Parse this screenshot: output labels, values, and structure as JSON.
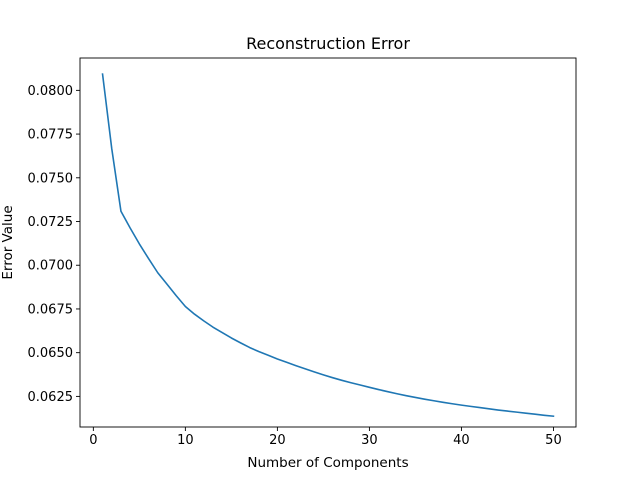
{
  "chart_data": {
    "type": "line",
    "title": "Reconstruction Error",
    "xlabel": "Number of Components",
    "ylabel": "Error Value",
    "xlim": [
      -1.45,
      52.45
    ],
    "ylim": [
      0.06075,
      0.08185
    ],
    "xticks": [
      0,
      10,
      20,
      30,
      40,
      50
    ],
    "yticks": [
      0.0625,
      0.065,
      0.0675,
      0.07,
      0.0725,
      0.075,
      0.0775,
      0.08
    ],
    "grid": false,
    "colors": {
      "series": "#1f77b4"
    },
    "series": [
      {
        "x": [
          1,
          2,
          3,
          4,
          5,
          6,
          7,
          8,
          9,
          10,
          11,
          12,
          13,
          14,
          15,
          16,
          17,
          18,
          19,
          20,
          21,
          22,
          23,
          24,
          25,
          26,
          27,
          28,
          29,
          30,
          31,
          32,
          33,
          34,
          35,
          36,
          37,
          38,
          39,
          40,
          41,
          42,
          43,
          44,
          45,
          46,
          47,
          48,
          49,
          50
        ],
        "values": [
          0.08093,
          0.07667,
          0.07309,
          0.07213,
          0.07122,
          0.07038,
          0.06957,
          0.06892,
          0.06826,
          0.06764,
          0.0672,
          0.06682,
          0.06646,
          0.06615,
          0.06584,
          0.06556,
          0.06529,
          0.06506,
          0.06485,
          0.06464,
          0.06445,
          0.06426,
          0.06408,
          0.0639,
          0.06373,
          0.06357,
          0.06342,
          0.06328,
          0.06315,
          0.06302,
          0.06289,
          0.06277,
          0.06265,
          0.06254,
          0.06244,
          0.06234,
          0.06225,
          0.06216,
          0.06208,
          0.062,
          0.06193,
          0.06186,
          0.06179,
          0.06172,
          0.06166,
          0.0616,
          0.06154,
          0.06148,
          0.06142,
          0.06137
        ]
      }
    ]
  }
}
